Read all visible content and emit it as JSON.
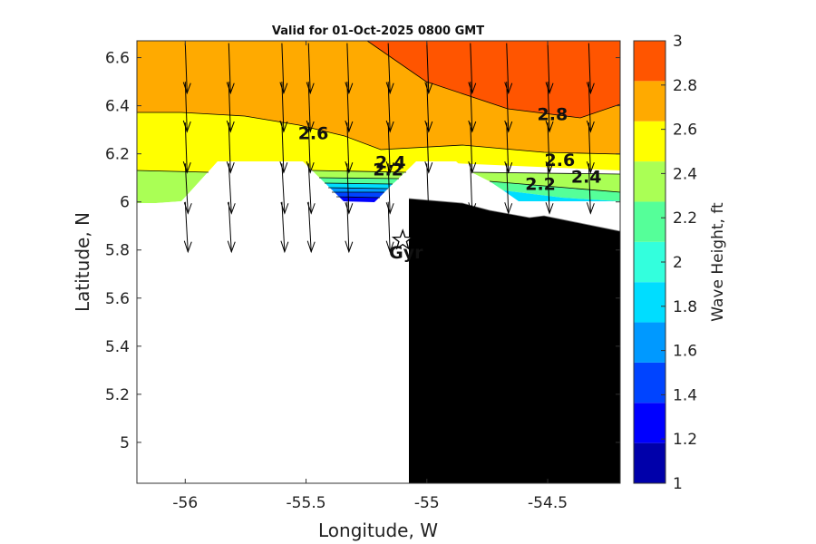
{
  "chart_data": {
    "type": "heatmap",
    "title": "Valid for 01-Oct-2025 0800 GMT",
    "xlabel": "Longitude, W",
    "ylabel": "Latitude, N",
    "xlim": [
      -56.2,
      -54.2
    ],
    "ylim": [
      4.83,
      6.67
    ],
    "x_ticks": [
      -56,
      -55.5,
      -55,
      -54.5
    ],
    "x_tick_labels": [
      "-56",
      "-55.5",
      "-55",
      "-54.5"
    ],
    "y_ticks": [
      5,
      5.2,
      5.4,
      5.6,
      5.8,
      6,
      6.2,
      6.4,
      6.6
    ],
    "y_tick_labels": [
      "5",
      "5.2",
      "5.4",
      "5.6",
      "5.8",
      "6",
      "6.2",
      "6.4",
      "6.6"
    ],
    "colorbar": {
      "label": "Wave Height, ft",
      "min": 1,
      "max": 3,
      "ticks": [
        1,
        1.2,
        1.4,
        1.6,
        1.8,
        2,
        2.2,
        2.4,
        2.6,
        2.8,
        3
      ],
      "tick_labels": [
        "1",
        "1.2",
        "1.4",
        "1.6",
        "1.8",
        "2",
        "2.2",
        "2.4",
        "2.6",
        "2.8",
        "3"
      ],
      "colors": [
        "#0000aa",
        "#0000ff",
        "#0044ff",
        "#0099ff",
        "#00ddff",
        "#33ffdd",
        "#55ff99",
        "#aaff55",
        "#ffff00",
        "#ffaa00",
        "#ff5500"
      ]
    },
    "contour_labels": [
      {
        "text": "2.6",
        "lon": -55.47,
        "lat": 6.26
      },
      {
        "text": "2.8",
        "lon": -54.48,
        "lat": 6.34
      },
      {
        "text": "2.4",
        "lon": -55.15,
        "lat": 6.14
      },
      {
        "text": "2.2",
        "lon": -55.16,
        "lat": 6.11
      },
      {
        "text": "2.6",
        "lon": -54.45,
        "lat": 6.15
      },
      {
        "text": "2.4",
        "lon": -54.34,
        "lat": 6.08
      },
      {
        "text": "2.2",
        "lon": -54.53,
        "lat": 6.05
      }
    ],
    "station": {
      "name": "Gyr",
      "lon": -55.1,
      "lat": 5.84
    },
    "land_color": "#000000",
    "wave_direction": "southward (from north)"
  }
}
